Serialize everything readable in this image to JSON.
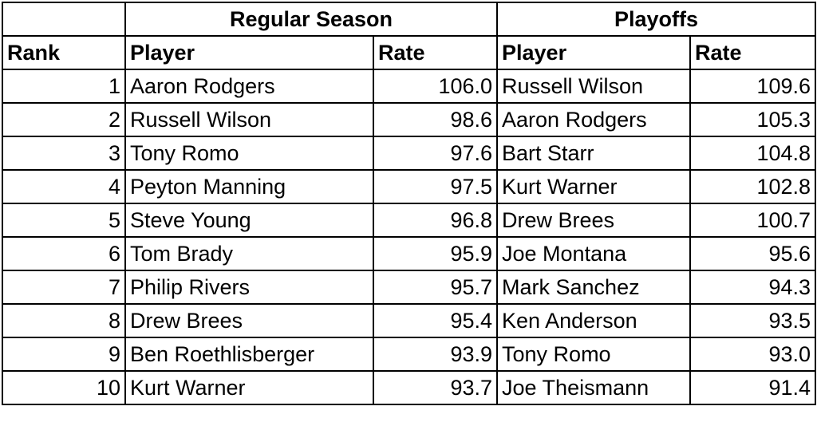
{
  "header": {
    "regular_season": "Regular Season",
    "playoffs": "Playoffs",
    "rank": "Rank",
    "player": "Player",
    "rate": "Rate"
  },
  "rows": [
    {
      "rank": "1",
      "rs_player": "Aaron Rodgers",
      "rs_rate": "106.0",
      "po_player": "Russell Wilson",
      "po_rate": "109.6"
    },
    {
      "rank": "2",
      "rs_player": "Russell Wilson",
      "rs_rate": "98.6",
      "po_player": "Aaron Rodgers",
      "po_rate": "105.3"
    },
    {
      "rank": "3",
      "rs_player": "Tony Romo",
      "rs_rate": "97.6",
      "po_player": "Bart Starr",
      "po_rate": "104.8"
    },
    {
      "rank": "4",
      "rs_player": "Peyton Manning",
      "rs_rate": "97.5",
      "po_player": "Kurt Warner",
      "po_rate": "102.8"
    },
    {
      "rank": "5",
      "rs_player": "Steve Young",
      "rs_rate": "96.8",
      "po_player": "Drew Brees",
      "po_rate": "100.7"
    },
    {
      "rank": "6",
      "rs_player": "Tom Brady",
      "rs_rate": "95.9",
      "po_player": "Joe Montana",
      "po_rate": "95.6"
    },
    {
      "rank": "7",
      "rs_player": "Philip Rivers",
      "rs_rate": "95.7",
      "po_player": "Mark Sanchez",
      "po_rate": "94.3"
    },
    {
      "rank": "8",
      "rs_player": "Drew Brees",
      "rs_rate": "95.4",
      "po_player": "Ken Anderson",
      "po_rate": "93.5"
    },
    {
      "rank": "9",
      "rs_player": "Ben Roethlisberger",
      "rs_rate": "93.9",
      "po_player": "Tony Romo",
      "po_rate": "93.0"
    },
    {
      "rank": "10",
      "rs_player": "Kurt Warner",
      "rs_rate": "93.7",
      "po_player": "Joe Theismann",
      "po_rate": "91.4"
    }
  ]
}
